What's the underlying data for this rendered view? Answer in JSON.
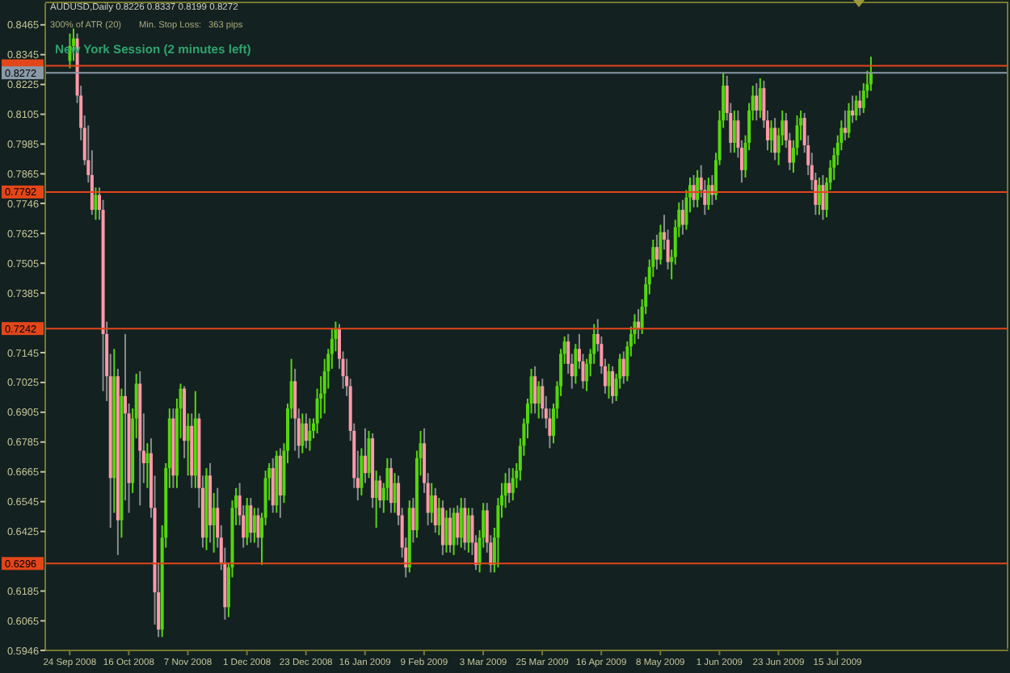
{
  "chart_data": {
    "type": "candlestick",
    "title": "AUDUSD,Daily 0.8226 0.8337 0.8199 0.8272",
    "annotations": [
      "300% of ATR (20)",
      "Min. Stop Loss:",
      "363 pips",
      "New York Session (2 minutes left)"
    ],
    "categories": [
      "24 Sep 2008",
      null,
      null,
      null,
      null,
      null,
      null,
      null,
      null,
      null,
      null,
      null,
      null,
      null,
      null,
      null,
      "16 Oct 2008",
      null,
      null,
      null,
      null,
      null,
      null,
      null,
      null,
      null,
      null,
      null,
      null,
      null,
      null,
      null,
      "7 Nov 2008",
      null,
      null,
      null,
      null,
      null,
      null,
      null,
      null,
      null,
      null,
      null,
      null,
      null,
      null,
      null,
      "1 Dec 2008",
      null,
      null,
      null,
      null,
      null,
      null,
      null,
      null,
      null,
      null,
      null,
      null,
      null,
      null,
      null,
      "23 Dec 2008",
      null,
      null,
      null,
      null,
      null,
      null,
      null,
      null,
      null,
      null,
      null,
      null,
      null,
      null,
      null,
      "16 Jan 2009",
      null,
      null,
      null,
      null,
      null,
      null,
      null,
      null,
      null,
      null,
      null,
      null,
      null,
      null,
      null,
      "9 Feb 2009",
      null,
      null,
      null,
      null,
      null,
      null,
      null,
      null,
      null,
      null,
      null,
      null,
      null,
      null,
      null,
      "3 Mar 2009",
      null,
      null,
      null,
      null,
      null,
      null,
      null,
      null,
      null,
      null,
      null,
      null,
      null,
      null,
      null,
      "25 Mar 2009",
      null,
      null,
      null,
      null,
      null,
      null,
      null,
      null,
      null,
      null,
      null,
      null,
      null,
      null,
      null,
      "16 Apr 2009",
      null,
      null,
      null,
      null,
      null,
      null,
      null,
      null,
      null,
      null,
      null,
      null,
      null,
      null,
      null,
      "8 May 2009",
      null,
      null,
      null,
      null,
      null,
      null,
      null,
      null,
      null,
      null,
      null,
      null,
      null,
      null,
      null,
      "1 Jun 2009",
      null,
      null,
      null,
      null,
      null,
      null,
      null,
      null,
      null,
      null,
      null,
      null,
      null,
      null,
      null,
      "23 Jun 2009",
      null,
      null,
      null,
      null,
      null,
      null,
      null,
      null,
      null,
      null,
      null,
      null,
      null,
      null,
      null,
      "15 Jul 2009",
      null,
      null,
      null,
      null,
      null,
      null,
      null,
      null,
      null
    ],
    "ohlc": [
      [
        0.832,
        0.843,
        0.829,
        0.838
      ],
      [
        0.838,
        0.845,
        0.832,
        0.841
      ],
      [
        0.841,
        0.843,
        0.815,
        0.818
      ],
      [
        0.818,
        0.822,
        0.8,
        0.805
      ],
      [
        0.805,
        0.81,
        0.79,
        0.792
      ],
      [
        0.792,
        0.806,
        0.783,
        0.786
      ],
      [
        0.786,
        0.796,
        0.77,
        0.772
      ],
      [
        0.772,
        0.781,
        0.768,
        0.778
      ],
      [
        0.778,
        0.781,
        0.768,
        0.772
      ],
      [
        0.772,
        0.776,
        0.699,
        0.722
      ],
      [
        0.722,
        0.727,
        0.695,
        0.705
      ],
      [
        0.705,
        0.714,
        0.644,
        0.664
      ],
      [
        0.664,
        0.716,
        0.65,
        0.705
      ],
      [
        0.705,
        0.708,
        0.633,
        0.647
      ],
      [
        0.647,
        0.7,
        0.64,
        0.697
      ],
      [
        0.697,
        0.722,
        0.655,
        0.69
      ],
      [
        0.69,
        0.694,
        0.65,
        0.662
      ],
      [
        0.662,
        0.692,
        0.658,
        0.688
      ],
      [
        0.688,
        0.706,
        0.68,
        0.702
      ],
      [
        0.702,
        0.707,
        0.653,
        0.675
      ],
      [
        0.675,
        0.69,
        0.662,
        0.67
      ],
      [
        0.67,
        0.678,
        0.66,
        0.674
      ],
      [
        0.674,
        0.68,
        0.648,
        0.652
      ],
      [
        0.652,
        0.665,
        0.605,
        0.618
      ],
      [
        0.618,
        0.63,
        0.6,
        0.603
      ],
      [
        0.603,
        0.645,
        0.6,
        0.64
      ],
      [
        0.64,
        0.67,
        0.636,
        0.668
      ],
      [
        0.668,
        0.692,
        0.66,
        0.688
      ],
      [
        0.688,
        0.692,
        0.66,
        0.665
      ],
      [
        0.665,
        0.696,
        0.66,
        0.692
      ],
      [
        0.692,
        0.702,
        0.68,
        0.7
      ],
      [
        0.7,
        0.701,
        0.672,
        0.679
      ],
      [
        0.679,
        0.69,
        0.665,
        0.685
      ],
      [
        0.685,
        0.69,
        0.66,
        0.665
      ],
      [
        0.665,
        0.699,
        0.66,
        0.688
      ],
      [
        0.688,
        0.69,
        0.652,
        0.66
      ],
      [
        0.66,
        0.665,
        0.636,
        0.64
      ],
      [
        0.64,
        0.668,
        0.635,
        0.665
      ],
      [
        0.665,
        0.67,
        0.638,
        0.645
      ],
      [
        0.645,
        0.658,
        0.634,
        0.652
      ],
      [
        0.652,
        0.66,
        0.636,
        0.64
      ],
      [
        0.64,
        0.645,
        0.627,
        0.63
      ],
      [
        0.63,
        0.636,
        0.607,
        0.612
      ],
      [
        0.612,
        0.63,
        0.608,
        0.628
      ],
      [
        0.628,
        0.655,
        0.624,
        0.652
      ],
      [
        0.652,
        0.66,
        0.645,
        0.657
      ],
      [
        0.657,
        0.662,
        0.645,
        0.649
      ],
      [
        0.649,
        0.653,
        0.636,
        0.64
      ],
      [
        0.64,
        0.656,
        0.637,
        0.653
      ],
      [
        0.653,
        0.656,
        0.638,
        0.642
      ],
      [
        0.642,
        0.652,
        0.638,
        0.649
      ],
      [
        0.649,
        0.652,
        0.636,
        0.64
      ],
      [
        0.64,
        0.65,
        0.629,
        0.648
      ],
      [
        0.648,
        0.667,
        0.645,
        0.664
      ],
      [
        0.664,
        0.67,
        0.655,
        0.668
      ],
      [
        0.668,
        0.672,
        0.65,
        0.653
      ],
      [
        0.653,
        0.675,
        0.65,
        0.673
      ],
      [
        0.673,
        0.676,
        0.648,
        0.657
      ],
      [
        0.657,
        0.678,
        0.654,
        0.675
      ],
      [
        0.675,
        0.694,
        0.67,
        0.692
      ],
      [
        0.692,
        0.712,
        0.688,
        0.703
      ],
      [
        0.703,
        0.708,
        0.675,
        0.688
      ],
      [
        0.688,
        0.692,
        0.672,
        0.677
      ],
      [
        0.677,
        0.69,
        0.674,
        0.686
      ],
      [
        0.686,
        0.69,
        0.676,
        0.679
      ],
      [
        0.679,
        0.688,
        0.675,
        0.683
      ],
      [
        0.683,
        0.688,
        0.68,
        0.686
      ],
      [
        0.686,
        0.7,
        0.682,
        0.696
      ],
      [
        0.696,
        0.705,
        0.688,
        0.698
      ],
      [
        0.698,
        0.712,
        0.69,
        0.707
      ],
      [
        0.707,
        0.716,
        0.7,
        0.714
      ],
      [
        0.714,
        0.724,
        0.708,
        0.72
      ],
      [
        0.72,
        0.727,
        0.715,
        0.724
      ],
      [
        0.724,
        0.726,
        0.708,
        0.712
      ],
      [
        0.712,
        0.715,
        0.7,
        0.705
      ],
      [
        0.705,
        0.712,
        0.697,
        0.701
      ],
      [
        0.701,
        0.704,
        0.679,
        0.683
      ],
      [
        0.683,
        0.686,
        0.66,
        0.664
      ],
      [
        0.664,
        0.675,
        0.655,
        0.66
      ],
      [
        0.66,
        0.676,
        0.657,
        0.673
      ],
      [
        0.673,
        0.684,
        0.662,
        0.666
      ],
      [
        0.666,
        0.683,
        0.664,
        0.68
      ],
      [
        0.68,
        0.682,
        0.652,
        0.656
      ],
      [
        0.656,
        0.667,
        0.644,
        0.663
      ],
      [
        0.663,
        0.665,
        0.652,
        0.655
      ],
      [
        0.655,
        0.662,
        0.65,
        0.66
      ],
      [
        0.66,
        0.672,
        0.655,
        0.668
      ],
      [
        0.668,
        0.672,
        0.65,
        0.654
      ],
      [
        0.654,
        0.666,
        0.65,
        0.662
      ],
      [
        0.662,
        0.665,
        0.645,
        0.649
      ],
      [
        0.649,
        0.652,
        0.632,
        0.636
      ],
      [
        0.636,
        0.64,
        0.624,
        0.628
      ],
      [
        0.628,
        0.655,
        0.626,
        0.652
      ],
      [
        0.652,
        0.656,
        0.638,
        0.643
      ],
      [
        0.643,
        0.675,
        0.64,
        0.672
      ],
      [
        0.672,
        0.683,
        0.665,
        0.678
      ],
      [
        0.678,
        0.684,
        0.658,
        0.662
      ],
      [
        0.662,
        0.666,
        0.645,
        0.65
      ],
      [
        0.65,
        0.662,
        0.646,
        0.657
      ],
      [
        0.657,
        0.66,
        0.642,
        0.645
      ],
      [
        0.645,
        0.656,
        0.641,
        0.652
      ],
      [
        0.652,
        0.655,
        0.633,
        0.637
      ],
      [
        0.637,
        0.651,
        0.634,
        0.648
      ],
      [
        0.648,
        0.652,
        0.634,
        0.637
      ],
      [
        0.637,
        0.652,
        0.633,
        0.65
      ],
      [
        0.65,
        0.653,
        0.637,
        0.64
      ],
      [
        0.64,
        0.656,
        0.636,
        0.652
      ],
      [
        0.652,
        0.656,
        0.635,
        0.638
      ],
      [
        0.638,
        0.652,
        0.634,
        0.649
      ],
      [
        0.649,
        0.652,
        0.633,
        0.638
      ],
      [
        0.638,
        0.641,
        0.627,
        0.629
      ],
      [
        0.629,
        0.643,
        0.626,
        0.64
      ],
      [
        0.64,
        0.654,
        0.636,
        0.651
      ],
      [
        0.651,
        0.654,
        0.634,
        0.638
      ],
      [
        0.638,
        0.641,
        0.626,
        0.629
      ],
      [
        0.629,
        0.644,
        0.626,
        0.64
      ],
      [
        0.64,
        0.656,
        0.628,
        0.653
      ],
      [
        0.653,
        0.662,
        0.648,
        0.657
      ],
      [
        0.657,
        0.666,
        0.652,
        0.662
      ],
      [
        0.662,
        0.668,
        0.654,
        0.658
      ],
      [
        0.658,
        0.668,
        0.655,
        0.664
      ],
      [
        0.664,
        0.67,
        0.66,
        0.667
      ],
      [
        0.667,
        0.68,
        0.663,
        0.677
      ],
      [
        0.677,
        0.688,
        0.673,
        0.686
      ],
      [
        0.686,
        0.696,
        0.68,
        0.694
      ],
      [
        0.694,
        0.708,
        0.69,
        0.705
      ],
      [
        0.705,
        0.709,
        0.69,
        0.694
      ],
      [
        0.694,
        0.703,
        0.688,
        0.701
      ],
      [
        0.701,
        0.704,
        0.688,
        0.692
      ],
      [
        0.692,
        0.697,
        0.684,
        0.688
      ],
      [
        0.688,
        0.692,
        0.676,
        0.681
      ],
      [
        0.681,
        0.694,
        0.678,
        0.692
      ],
      [
        0.692,
        0.703,
        0.688,
        0.701
      ],
      [
        0.701,
        0.716,
        0.697,
        0.714
      ],
      [
        0.714,
        0.721,
        0.71,
        0.719
      ],
      [
        0.719,
        0.722,
        0.706,
        0.71
      ],
      [
        0.71,
        0.714,
        0.7,
        0.705
      ],
      [
        0.705,
        0.718,
        0.702,
        0.716
      ],
      [
        0.716,
        0.722,
        0.708,
        0.711
      ],
      [
        0.711,
        0.714,
        0.7,
        0.703
      ],
      [
        0.703,
        0.712,
        0.699,
        0.71
      ],
      [
        0.71,
        0.716,
        0.705,
        0.714
      ],
      [
        0.714,
        0.726,
        0.71,
        0.722
      ],
      [
        0.722,
        0.728,
        0.715,
        0.718
      ],
      [
        0.718,
        0.721,
        0.706,
        0.709
      ],
      [
        0.709,
        0.712,
        0.698,
        0.701
      ],
      [
        0.701,
        0.71,
        0.696,
        0.707
      ],
      [
        0.707,
        0.709,
        0.694,
        0.697
      ],
      [
        0.697,
        0.706,
        0.695,
        0.704
      ],
      [
        0.704,
        0.714,
        0.7,
        0.712
      ],
      [
        0.712,
        0.715,
        0.702,
        0.705
      ],
      [
        0.705,
        0.719,
        0.703,
        0.717
      ],
      [
        0.717,
        0.725,
        0.713,
        0.722
      ],
      [
        0.722,
        0.73,
        0.718,
        0.727
      ],
      [
        0.727,
        0.732,
        0.72,
        0.724
      ],
      [
        0.724,
        0.736,
        0.722,
        0.733
      ],
      [
        0.733,
        0.745,
        0.73,
        0.742
      ],
      [
        0.742,
        0.752,
        0.738,
        0.749
      ],
      [
        0.749,
        0.76,
        0.745,
        0.757
      ],
      [
        0.757,
        0.762,
        0.748,
        0.752
      ],
      [
        0.752,
        0.766,
        0.75,
        0.763
      ],
      [
        0.763,
        0.77,
        0.756,
        0.76
      ],
      [
        0.76,
        0.764,
        0.748,
        0.751
      ],
      [
        0.751,
        0.756,
        0.744,
        0.753
      ],
      [
        0.753,
        0.768,
        0.75,
        0.765
      ],
      [
        0.765,
        0.775,
        0.761,
        0.772
      ],
      [
        0.772,
        0.776,
        0.762,
        0.766
      ],
      [
        0.766,
        0.78,
        0.764,
        0.777
      ],
      [
        0.777,
        0.785,
        0.771,
        0.782
      ],
      [
        0.782,
        0.786,
        0.773,
        0.776
      ],
      [
        0.776,
        0.788,
        0.773,
        0.785
      ],
      [
        0.785,
        0.79,
        0.777,
        0.78
      ],
      [
        0.78,
        0.784,
        0.77,
        0.774
      ],
      [
        0.774,
        0.785,
        0.772,
        0.782
      ],
      [
        0.782,
        0.786,
        0.774,
        0.778
      ],
      [
        0.778,
        0.795,
        0.776,
        0.792
      ],
      [
        0.792,
        0.812,
        0.79,
        0.808
      ],
      [
        0.808,
        0.827,
        0.805,
        0.822
      ],
      [
        0.822,
        0.826,
        0.808,
        0.811
      ],
      [
        0.811,
        0.815,
        0.795,
        0.799
      ],
      [
        0.799,
        0.812,
        0.795,
        0.808
      ],
      [
        0.808,
        0.812,
        0.793,
        0.797
      ],
      [
        0.797,
        0.8,
        0.783,
        0.788
      ],
      [
        0.788,
        0.802,
        0.785,
        0.799
      ],
      [
        0.799,
        0.815,
        0.796,
        0.812
      ],
      [
        0.812,
        0.822,
        0.808,
        0.818
      ],
      [
        0.818,
        0.823,
        0.808,
        0.812
      ],
      [
        0.812,
        0.825,
        0.809,
        0.821
      ],
      [
        0.821,
        0.824,
        0.805,
        0.808
      ],
      [
        0.808,
        0.812,
        0.796,
        0.8
      ],
      [
        0.8,
        0.808,
        0.795,
        0.805
      ],
      [
        0.805,
        0.809,
        0.792,
        0.795
      ],
      [
        0.795,
        0.805,
        0.79,
        0.802
      ],
      [
        0.802,
        0.812,
        0.798,
        0.808
      ],
      [
        0.808,
        0.811,
        0.797,
        0.8
      ],
      [
        0.8,
        0.803,
        0.788,
        0.791
      ],
      [
        0.791,
        0.8,
        0.787,
        0.797
      ],
      [
        0.797,
        0.81,
        0.794,
        0.806
      ],
      [
        0.806,
        0.812,
        0.8,
        0.809
      ],
      [
        0.809,
        0.811,
        0.795,
        0.798
      ],
      [
        0.798,
        0.802,
        0.786,
        0.79
      ],
      [
        0.79,
        0.795,
        0.78,
        0.784
      ],
      [
        0.784,
        0.787,
        0.77,
        0.774
      ],
      [
        0.774,
        0.785,
        0.77,
        0.782
      ],
      [
        0.782,
        0.786,
        0.768,
        0.772
      ],
      [
        0.772,
        0.785,
        0.769,
        0.783
      ],
      [
        0.783,
        0.792,
        0.78,
        0.789
      ],
      [
        0.789,
        0.797,
        0.784,
        0.794
      ],
      [
        0.794,
        0.802,
        0.79,
        0.799
      ],
      [
        0.799,
        0.808,
        0.796,
        0.805
      ],
      [
        0.805,
        0.812,
        0.8,
        0.803
      ],
      [
        0.803,
        0.815,
        0.801,
        0.812
      ],
      [
        0.812,
        0.818,
        0.807,
        0.81
      ],
      [
        0.81,
        0.818,
        0.808,
        0.816
      ],
      [
        0.816,
        0.82,
        0.81,
        0.813
      ],
      [
        0.813,
        0.823,
        0.811,
        0.82
      ],
      [
        0.82,
        0.828,
        0.817,
        0.8226
      ],
      [
        0.8226,
        0.8337,
        0.8199,
        0.8272
      ]
    ],
    "ylim": [
      0.5946,
      0.8552
    ],
    "yticks": [
      0.8465,
      0.8345,
      0.8225,
      0.8105,
      0.7985,
      0.7865,
      0.7746,
      0.7625,
      0.7505,
      0.7385,
      0.7145,
      0.7025,
      0.6905,
      0.6785,
      0.6665,
      0.6545,
      0.6425,
      0.6185,
      0.6065,
      0.5946
    ],
    "ref_lines": [
      {
        "axis": "y",
        "value": 0.83,
        "color": "#e2461a"
      },
      {
        "axis": "y",
        "value": 0.8272,
        "label": "0.8272",
        "color": "#8a9aa8"
      },
      {
        "axis": "y",
        "value": 0.7792,
        "label": "0.7792",
        "color": "#e2461a"
      },
      {
        "axis": "y",
        "value": 0.7242,
        "label": "0.7242",
        "color": "#e2461a"
      },
      {
        "axis": "y",
        "value": 0.6296,
        "label": "0.6296",
        "color": "#e2461a"
      }
    ]
  }
}
